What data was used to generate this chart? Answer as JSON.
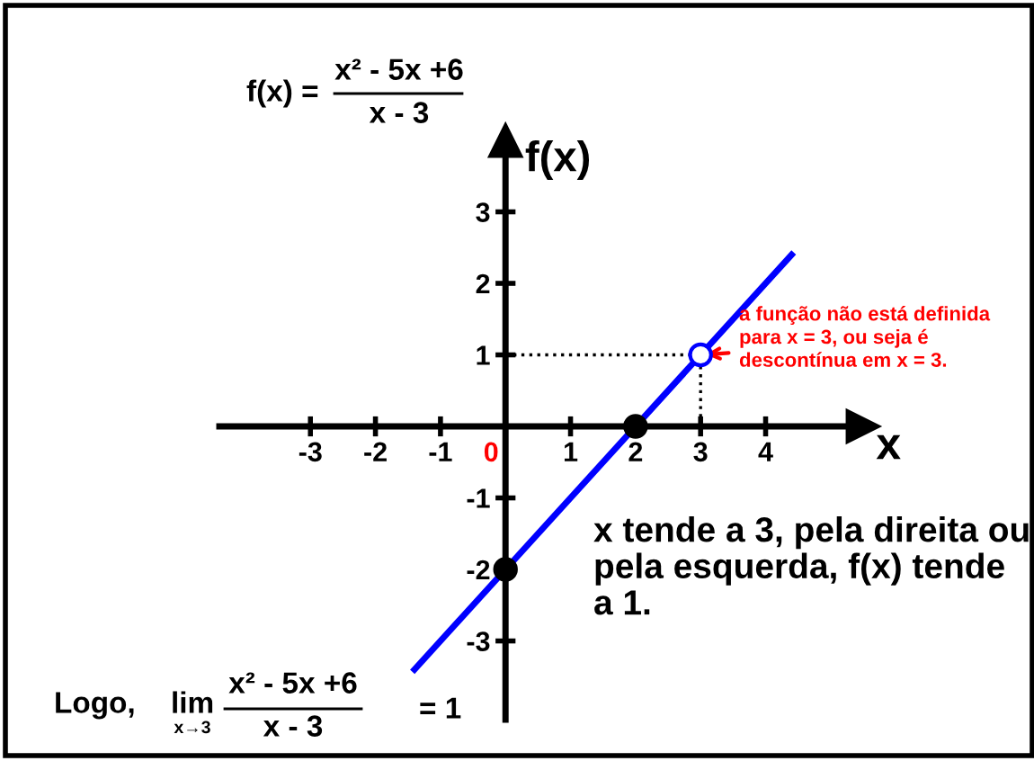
{
  "chart_data": {
    "type": "line",
    "xlabel": "x",
    "ylabel": "f(x)",
    "xlim": [
      -4.4,
      5.5
    ],
    "ylim": [
      -4.1,
      4.0
    ],
    "xticks": [
      -3,
      -2,
      -1,
      0,
      1,
      2,
      3,
      4
    ],
    "yticks": [
      -3,
      -2,
      -1,
      1,
      2,
      3
    ],
    "grid": false,
    "legend": false,
    "series": [
      {
        "color": "#0000ff",
        "x": [
          -1.4,
          4.4
        ],
        "values": [
          -3.4,
          2.4
        ]
      },
      {
        "type": "line",
        "color": "#000000",
        "line_style": "dotted",
        "x": [
          0,
          3,
          3
        ],
        "values": [
          1,
          1,
          0
        ]
      },
      {
        "type": "scatter",
        "color": "#000000",
        "marker": "circle",
        "x": [
          0,
          2
        ],
        "values": [
          -2,
          0
        ]
      },
      {
        "type": "scatter",
        "color": "#0000ff",
        "colors": [
          "#ffffff"
        ],
        "marker": "circle",
        "x": [
          3
        ],
        "values": [
          1
        ]
      }
    ],
    "annotations": [
      "f(x) =",
      "x² - 5x +6",
      "x - 3",
      {
        "text": "a função não está definida para x = 3, ou seja é descontínua em x = 3.",
        "x": 3,
        "y": 1
      },
      "x tende a 3, pela direita ou pela esquerda, f(x) tende a 1.",
      "Logo,",
      "lim",
      "x→3",
      "x² - 5x +6",
      "x - 3",
      "= 1"
    ]
  }
}
